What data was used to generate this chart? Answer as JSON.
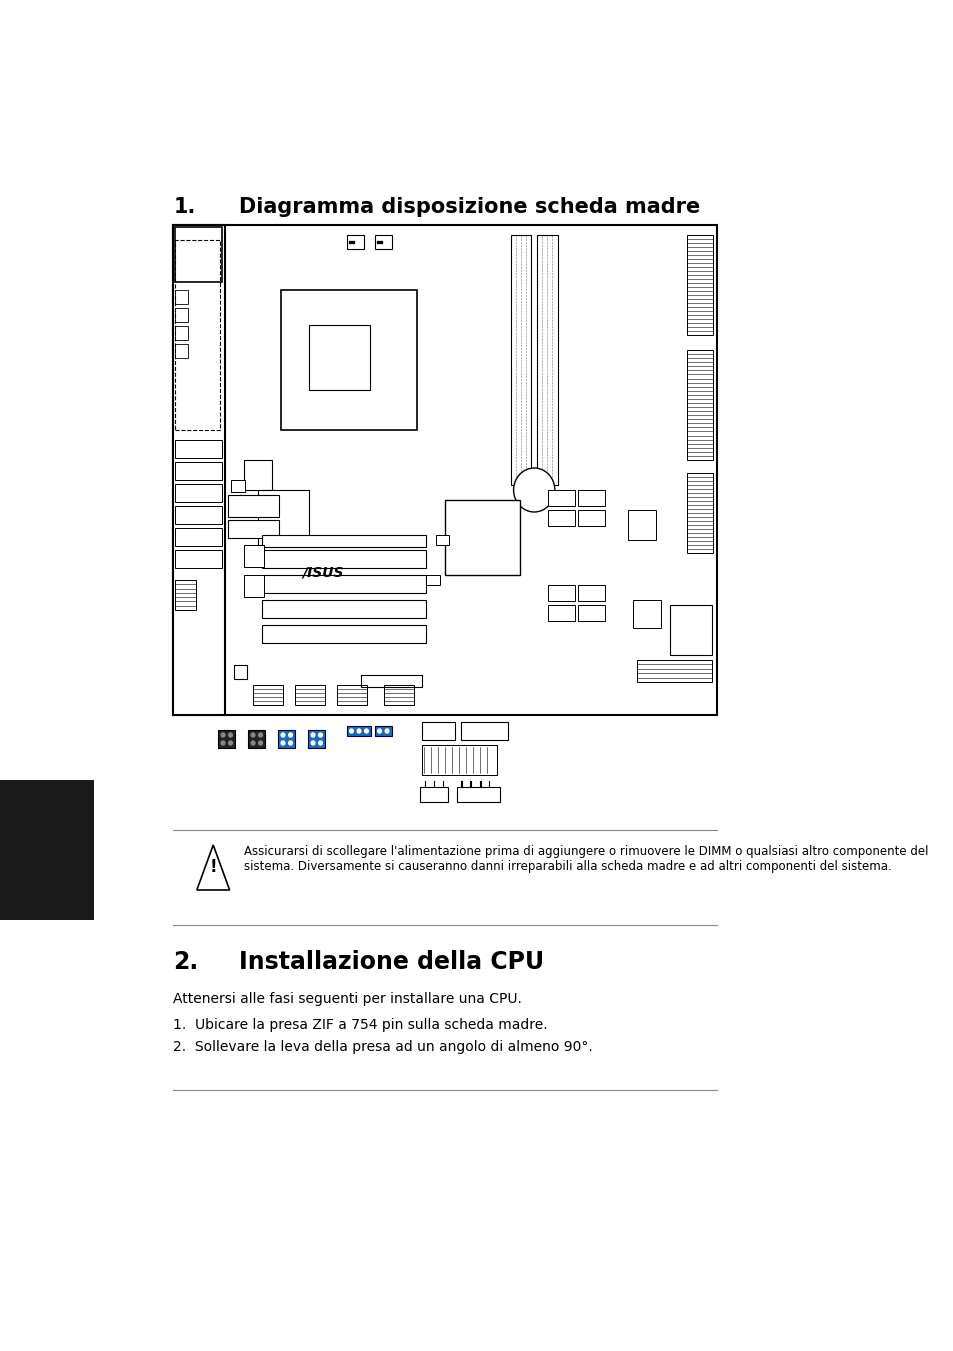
{
  "title1_num": "1.",
  "title1_text": "Diagramma disposizione scheda madre",
  "title2_num": "2.",
  "title2_text": "Installazione della CPU",
  "subtitle2": "Attenersi alle fasi seguenti per installare una CPU.",
  "steps": [
    "1.  Ubicare la presa ZIF a 754 pin sulla scheda madre.",
    "2.  Sollevare la leva della presa ad un angolo di almeno 90°."
  ],
  "warning_text": "Assicurarsi di scollegare l'alimentazione prima di aggiungere o rimuovere le DIMM o qualsiasi altro componente del sistema. Diversamente si causeranno danni irreparabili alla scheda madre e ad altri componenti del sistema.",
  "bg_color": "#ffffff",
  "text_color": "#000000",
  "blue_color": "#1a6bb5",
  "board_color": "#000000",
  "sidebar_color": "#1a1a1a"
}
